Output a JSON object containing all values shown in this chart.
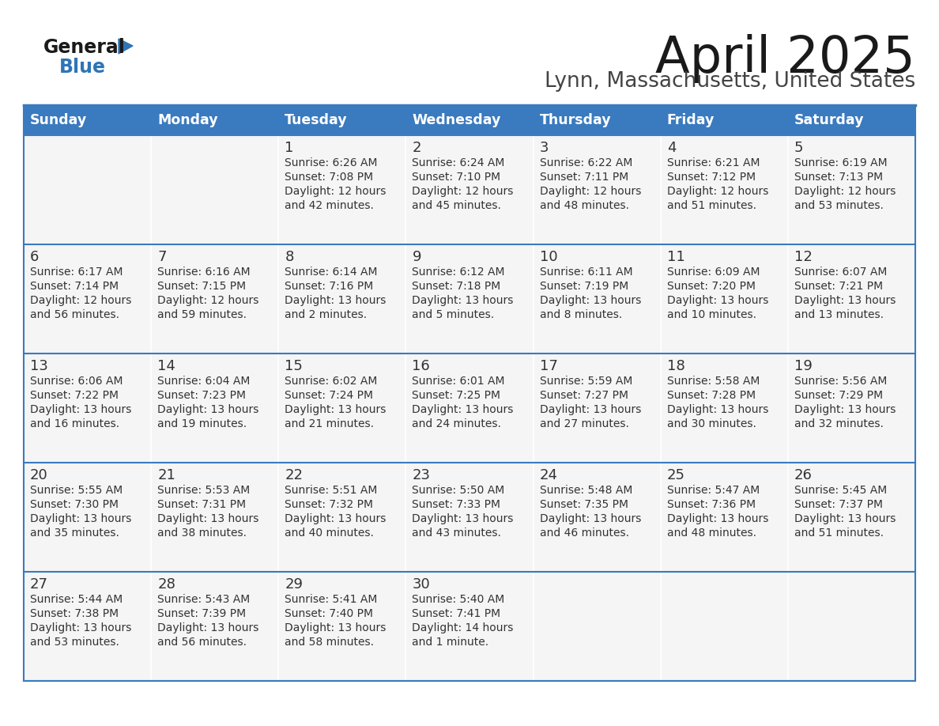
{
  "title": "April 2025",
  "subtitle": "Lynn, Massachusetts, United States",
  "header_bg": "#3a7abf",
  "header_text_color": "#ffffff",
  "day_names": [
    "Sunday",
    "Monday",
    "Tuesday",
    "Wednesday",
    "Thursday",
    "Friday",
    "Saturday"
  ],
  "cell_bg": "#f5f5f5",
  "text_color": "#333333",
  "border_color": "#3a7abf",
  "logo_general_color": "#1a1a1a",
  "logo_blue_color": "#2e75b6",
  "title_color": "#1a1a1a",
  "subtitle_color": "#444444",
  "calendar": [
    [
      {
        "day": null,
        "sunrise": null,
        "sunset": null,
        "daylight": null
      },
      {
        "day": null,
        "sunrise": null,
        "sunset": null,
        "daylight": null
      },
      {
        "day": 1,
        "sunrise": "6:26 AM",
        "sunset": "7:08 PM",
        "daylight": "12 hours\nand 42 minutes."
      },
      {
        "day": 2,
        "sunrise": "6:24 AM",
        "sunset": "7:10 PM",
        "daylight": "12 hours\nand 45 minutes."
      },
      {
        "day": 3,
        "sunrise": "6:22 AM",
        "sunset": "7:11 PM",
        "daylight": "12 hours\nand 48 minutes."
      },
      {
        "day": 4,
        "sunrise": "6:21 AM",
        "sunset": "7:12 PM",
        "daylight": "12 hours\nand 51 minutes."
      },
      {
        "day": 5,
        "sunrise": "6:19 AM",
        "sunset": "7:13 PM",
        "daylight": "12 hours\nand 53 minutes."
      }
    ],
    [
      {
        "day": 6,
        "sunrise": "6:17 AM",
        "sunset": "7:14 PM",
        "daylight": "12 hours\nand 56 minutes."
      },
      {
        "day": 7,
        "sunrise": "6:16 AM",
        "sunset": "7:15 PM",
        "daylight": "12 hours\nand 59 minutes."
      },
      {
        "day": 8,
        "sunrise": "6:14 AM",
        "sunset": "7:16 PM",
        "daylight": "13 hours\nand 2 minutes."
      },
      {
        "day": 9,
        "sunrise": "6:12 AM",
        "sunset": "7:18 PM",
        "daylight": "13 hours\nand 5 minutes."
      },
      {
        "day": 10,
        "sunrise": "6:11 AM",
        "sunset": "7:19 PM",
        "daylight": "13 hours\nand 8 minutes."
      },
      {
        "day": 11,
        "sunrise": "6:09 AM",
        "sunset": "7:20 PM",
        "daylight": "13 hours\nand 10 minutes."
      },
      {
        "day": 12,
        "sunrise": "6:07 AM",
        "sunset": "7:21 PM",
        "daylight": "13 hours\nand 13 minutes."
      }
    ],
    [
      {
        "day": 13,
        "sunrise": "6:06 AM",
        "sunset": "7:22 PM",
        "daylight": "13 hours\nand 16 minutes."
      },
      {
        "day": 14,
        "sunrise": "6:04 AM",
        "sunset": "7:23 PM",
        "daylight": "13 hours\nand 19 minutes."
      },
      {
        "day": 15,
        "sunrise": "6:02 AM",
        "sunset": "7:24 PM",
        "daylight": "13 hours\nand 21 minutes."
      },
      {
        "day": 16,
        "sunrise": "6:01 AM",
        "sunset": "7:25 PM",
        "daylight": "13 hours\nand 24 minutes."
      },
      {
        "day": 17,
        "sunrise": "5:59 AM",
        "sunset": "7:27 PM",
        "daylight": "13 hours\nand 27 minutes."
      },
      {
        "day": 18,
        "sunrise": "5:58 AM",
        "sunset": "7:28 PM",
        "daylight": "13 hours\nand 30 minutes."
      },
      {
        "day": 19,
        "sunrise": "5:56 AM",
        "sunset": "7:29 PM",
        "daylight": "13 hours\nand 32 minutes."
      }
    ],
    [
      {
        "day": 20,
        "sunrise": "5:55 AM",
        "sunset": "7:30 PM",
        "daylight": "13 hours\nand 35 minutes."
      },
      {
        "day": 21,
        "sunrise": "5:53 AM",
        "sunset": "7:31 PM",
        "daylight": "13 hours\nand 38 minutes."
      },
      {
        "day": 22,
        "sunrise": "5:51 AM",
        "sunset": "7:32 PM",
        "daylight": "13 hours\nand 40 minutes."
      },
      {
        "day": 23,
        "sunrise": "5:50 AM",
        "sunset": "7:33 PM",
        "daylight": "13 hours\nand 43 minutes."
      },
      {
        "day": 24,
        "sunrise": "5:48 AM",
        "sunset": "7:35 PM",
        "daylight": "13 hours\nand 46 minutes."
      },
      {
        "day": 25,
        "sunrise": "5:47 AM",
        "sunset": "7:36 PM",
        "daylight": "13 hours\nand 48 minutes."
      },
      {
        "day": 26,
        "sunrise": "5:45 AM",
        "sunset": "7:37 PM",
        "daylight": "13 hours\nand 51 minutes."
      }
    ],
    [
      {
        "day": 27,
        "sunrise": "5:44 AM",
        "sunset": "7:38 PM",
        "daylight": "13 hours\nand 53 minutes."
      },
      {
        "day": 28,
        "sunrise": "5:43 AM",
        "sunset": "7:39 PM",
        "daylight": "13 hours\nand 56 minutes."
      },
      {
        "day": 29,
        "sunrise": "5:41 AM",
        "sunset": "7:40 PM",
        "daylight": "13 hours\nand 58 minutes."
      },
      {
        "day": 30,
        "sunrise": "5:40 AM",
        "sunset": "7:41 PM",
        "daylight": "14 hours\nand 1 minute."
      },
      {
        "day": null,
        "sunrise": null,
        "sunset": null,
        "daylight": null
      },
      {
        "day": null,
        "sunrise": null,
        "sunset": null,
        "daylight": null
      },
      {
        "day": null,
        "sunrise": null,
        "sunset": null,
        "daylight": null
      }
    ]
  ]
}
